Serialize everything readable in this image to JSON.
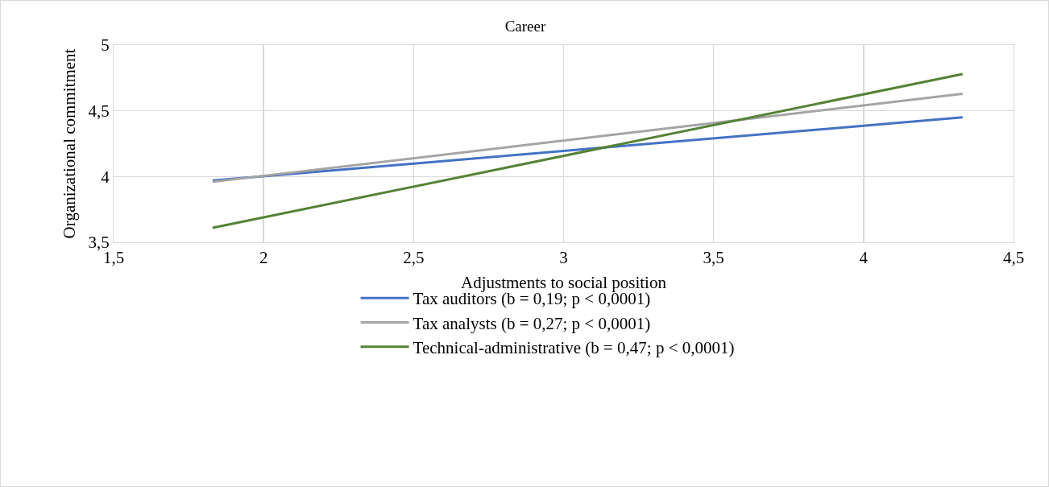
{
  "chart_data": {
    "type": "line",
    "title": "Career",
    "xlabel": "Adjustments to social position",
    "ylabel": "Organizational commitment",
    "x": [
      1.83,
      4.33
    ],
    "series": [
      {
        "name": "Tax auditors (b = 0,19; p < 0,0001)",
        "color": "#4472c4",
        "values": [
          3.97,
          4.45
        ]
      },
      {
        "name": "Tax analysts (b = 0,27; p < 0,0001)",
        "color": "#a5a5a5",
        "values": [
          3.96,
          4.63
        ]
      },
      {
        "name": "Technical-administrative (b = 0,47; p < 0,0001)",
        "color": "#548235",
        "values": [
          3.61,
          4.78
        ]
      }
    ],
    "xlim": [
      1.5,
      4.5
    ],
    "xticks": [
      {
        "value": 1.5,
        "label": "1,5"
      },
      2,
      {
        "value": 2.5,
        "label": "2,5"
      },
      3,
      {
        "value": 3.5,
        "label": "3,5"
      },
      4,
      {
        "value": 4.5,
        "label": "4,5"
      }
    ],
    "ylim": [
      3.5,
      5
    ],
    "yticks": [
      {
        "value": 3.5,
        "label": "3,5"
      },
      4,
      {
        "value": 4.5,
        "label": "4,5"
      },
      5
    ],
    "grid": true,
    "legend": "bottom",
    "marker": "none",
    "line_style": "solid"
  }
}
